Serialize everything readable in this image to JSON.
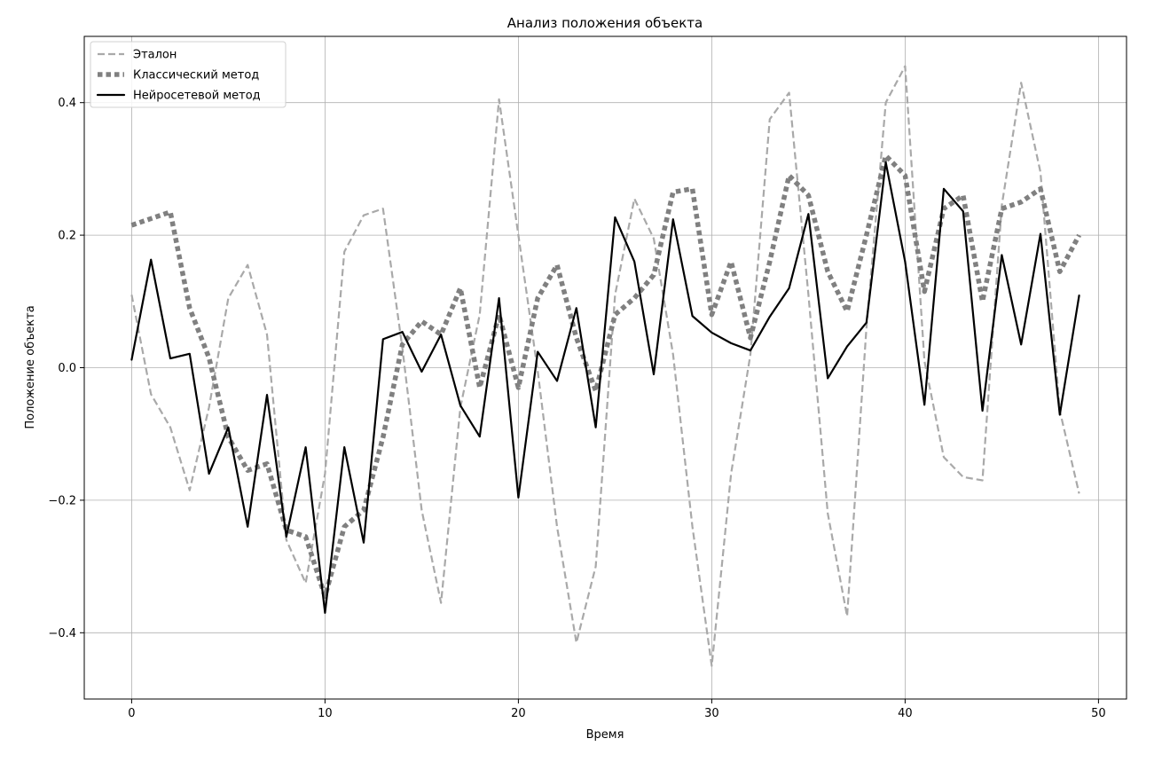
{
  "chart_data": {
    "type": "line",
    "title": "Анализ положения объекта",
    "xlabel": "Время",
    "ylabel": "Положение объекта",
    "xlim": [
      -2.45,
      51.45
    ],
    "ylim": [
      -0.5,
      0.5
    ],
    "xticks": [
      0,
      10,
      20,
      30,
      40,
      50
    ],
    "yticks": [
      -0.4,
      -0.2,
      0.0,
      0.2,
      0.4
    ],
    "xtick_labels": [
      "0",
      "10",
      "20",
      "30",
      "40",
      "50"
    ],
    "ytick_labels": [
      "−0.4",
      "−0.2",
      "0.0",
      "0.2",
      "0.4"
    ],
    "grid": true,
    "legend_position": "upper-left",
    "x": [
      0,
      1,
      2,
      3,
      4,
      5,
      6,
      7,
      8,
      9,
      10,
      11,
      12,
      13,
      14,
      15,
      16,
      17,
      18,
      19,
      20,
      21,
      22,
      23,
      24,
      25,
      26,
      27,
      28,
      29,
      30,
      31,
      32,
      33,
      34,
      35,
      36,
      37,
      38,
      39,
      40,
      41,
      42,
      43,
      44,
      45,
      46,
      47,
      48,
      49
    ],
    "series": [
      {
        "name": "Эталон",
        "color": "#a9a9a9",
        "style": "dashed",
        "values": [
          0.11,
          -0.04,
          -0.09,
          -0.185,
          -0.06,
          0.105,
          0.155,
          0.05,
          -0.26,
          -0.325,
          -0.16,
          0.175,
          0.23,
          0.24,
          0.03,
          -0.215,
          -0.355,
          -0.06,
          0.08,
          0.405,
          0.2,
          -0.005,
          -0.24,
          -0.415,
          -0.3,
          0.11,
          0.255,
          0.195,
          0.02,
          -0.24,
          -0.45,
          -0.16,
          0.02,
          0.375,
          0.415,
          0.11,
          -0.22,
          -0.375,
          0.06,
          0.4,
          0.455,
          0.01,
          -0.135,
          -0.165,
          -0.17,
          0.245,
          0.43,
          0.295,
          -0.065,
          -0.19
        ]
      },
      {
        "name": "Классический метод",
        "color": "#808080",
        "style": "dotted",
        "values": [
          0.215,
          0.225,
          0.235,
          0.09,
          0.015,
          -0.105,
          -0.155,
          -0.145,
          -0.245,
          -0.255,
          -0.345,
          -0.24,
          -0.215,
          -0.105,
          0.035,
          0.07,
          0.05,
          0.12,
          -0.03,
          0.08,
          -0.03,
          0.105,
          0.155,
          0.045,
          -0.035,
          0.08,
          0.105,
          0.14,
          0.265,
          0.27,
          0.08,
          0.16,
          0.045,
          0.16,
          0.29,
          0.26,
          0.145,
          0.085,
          0.2,
          0.32,
          0.29,
          0.115,
          0.24,
          0.26,
          0.1,
          0.24,
          0.25,
          0.27,
          0.145,
          0.2
        ]
      },
      {
        "name": "Нейросетевой метод",
        "color": "#000000",
        "style": "solid",
        "values": [
          0.012,
          0.163,
          0.014,
          0.021,
          -0.16,
          -0.09,
          -0.24,
          -0.041,
          -0.255,
          -0.12,
          -0.37,
          -0.12,
          -0.264,
          0.043,
          0.054,
          -0.006,
          0.05,
          -0.057,
          -0.104,
          0.105,
          -0.196,
          0.024,
          -0.02,
          0.09,
          -0.09,
          0.227,
          0.16,
          -0.01,
          0.224,
          0.078,
          0.053,
          0.037,
          0.026,
          0.077,
          0.12,
          0.232,
          -0.016,
          0.032,
          0.068,
          0.31,
          0.16,
          -0.056,
          0.27,
          0.236,
          -0.065,
          0.17,
          0.035,
          0.202,
          -0.071,
          0.109
        ]
      }
    ]
  }
}
